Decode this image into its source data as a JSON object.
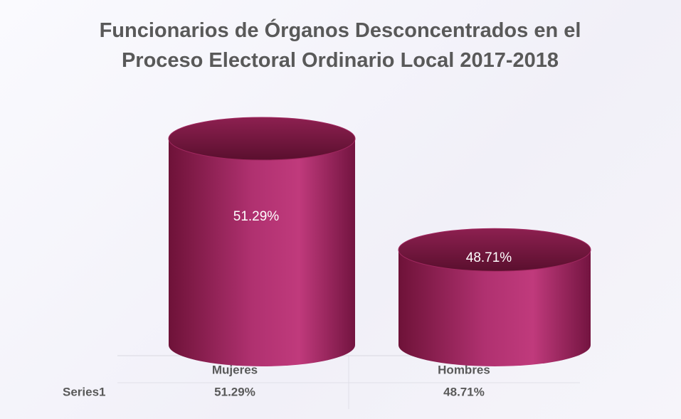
{
  "chart_data": {
    "type": "cylinder",
    "title": "Funcionarios de Órganos Desconcentrados en el Proceso Electoral Ordinario Local 2017-2018",
    "categories": [
      "Mujeres",
      "Hombres"
    ],
    "series": [
      {
        "name": "Series1",
        "color": "#a0285f",
        "values": [
          51.29,
          48.71
        ],
        "value_labels": [
          "51.29%",
          "48.71%"
        ]
      }
    ],
    "ylim": [
      46.5,
      52
    ]
  }
}
